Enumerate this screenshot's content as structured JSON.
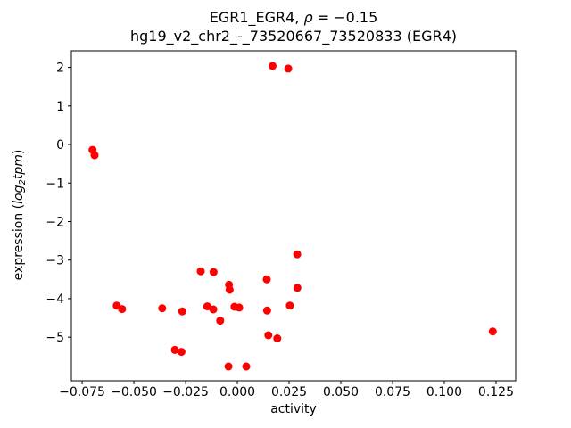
{
  "chart_data": {
    "type": "scatter",
    "title": {
      "line1_prefix": "EGR1_EGR4, ",
      "line1_italic": "ρ",
      "line1_suffix": " = −0.15",
      "line2": "hg19_v2_chr2_-_73520667_73520833 (EGR4)"
    },
    "xlabel": "activity",
    "ylabel": {
      "prefix": "expression (",
      "italic_main": "log",
      "italic_sub": "2",
      "italic_rest": "tpm",
      "suffix": ")"
    },
    "marker_color": "#ff0000",
    "axis_color": "#000000",
    "background_color": "#ffffff",
    "grid": false,
    "legend": null,
    "xlim": [
      -0.0802,
      0.1345
    ],
    "ylim": [
      -6.13,
      2.43
    ],
    "x_ticks": [
      {
        "v": -0.075,
        "label": "−0.075"
      },
      {
        "v": -0.05,
        "label": "−0.050"
      },
      {
        "v": -0.025,
        "label": "−0.025"
      },
      {
        "v": 0.0,
        "label": "0.000"
      },
      {
        "v": 0.025,
        "label": "0.025"
      },
      {
        "v": 0.05,
        "label": "0.050"
      },
      {
        "v": 0.075,
        "label": "0.075"
      },
      {
        "v": 0.1,
        "label": "0.100"
      },
      {
        "v": 0.125,
        "label": "0.125"
      }
    ],
    "y_ticks": [
      {
        "v": 2,
        "label": "2"
      },
      {
        "v": 1,
        "label": "1"
      },
      {
        "v": 0,
        "label": "0"
      },
      {
        "v": -1,
        "label": "−1"
      },
      {
        "v": -2,
        "label": "−2"
      },
      {
        "v": -3,
        "label": "−3"
      },
      {
        "v": -4,
        "label": "−4"
      },
      {
        "v": -5,
        "label": "−5"
      }
    ],
    "points": [
      {
        "x": -0.07,
        "y": -0.14
      },
      {
        "x": -0.069,
        "y": -0.28
      },
      {
        "x": 0.017,
        "y": 2.04
      },
      {
        "x": 0.0246,
        "y": 1.97
      },
      {
        "x": -0.0583,
        "y": -4.18
      },
      {
        "x": -0.0557,
        "y": -4.27
      },
      {
        "x": -0.0363,
        "y": -4.25
      },
      {
        "x": -0.0266,
        "y": -4.33
      },
      {
        "x": -0.0145,
        "y": -4.2
      },
      {
        "x": -0.0116,
        "y": -4.28
      },
      {
        "x": -0.0177,
        "y": -3.29
      },
      {
        "x": -0.0115,
        "y": -3.31
      },
      {
        "x": -0.004,
        "y": -3.64
      },
      {
        "x": -0.0037,
        "y": -3.77
      },
      {
        "x": -0.0014,
        "y": -4.21
      },
      {
        "x": 0.0009,
        "y": -4.23
      },
      {
        "x": -0.0083,
        "y": -4.57
      },
      {
        "x": 0.0142,
        "y": -3.5
      },
      {
        "x": 0.0289,
        "y": -2.85
      },
      {
        "x": 0.029,
        "y": -3.72
      },
      {
        "x": 0.0254,
        "y": -4.18
      },
      {
        "x": 0.0144,
        "y": -4.31
      },
      {
        "x": 0.015,
        "y": -4.95
      },
      {
        "x": 0.0193,
        "y": -5.03
      },
      {
        "x": -0.0302,
        "y": -5.33
      },
      {
        "x": -0.027,
        "y": -5.38
      },
      {
        "x": -0.0043,
        "y": -5.76
      },
      {
        "x": 0.0043,
        "y": -5.76
      },
      {
        "x": 0.1234,
        "y": -4.85
      }
    ],
    "marker_radius_px": 4.5
  }
}
